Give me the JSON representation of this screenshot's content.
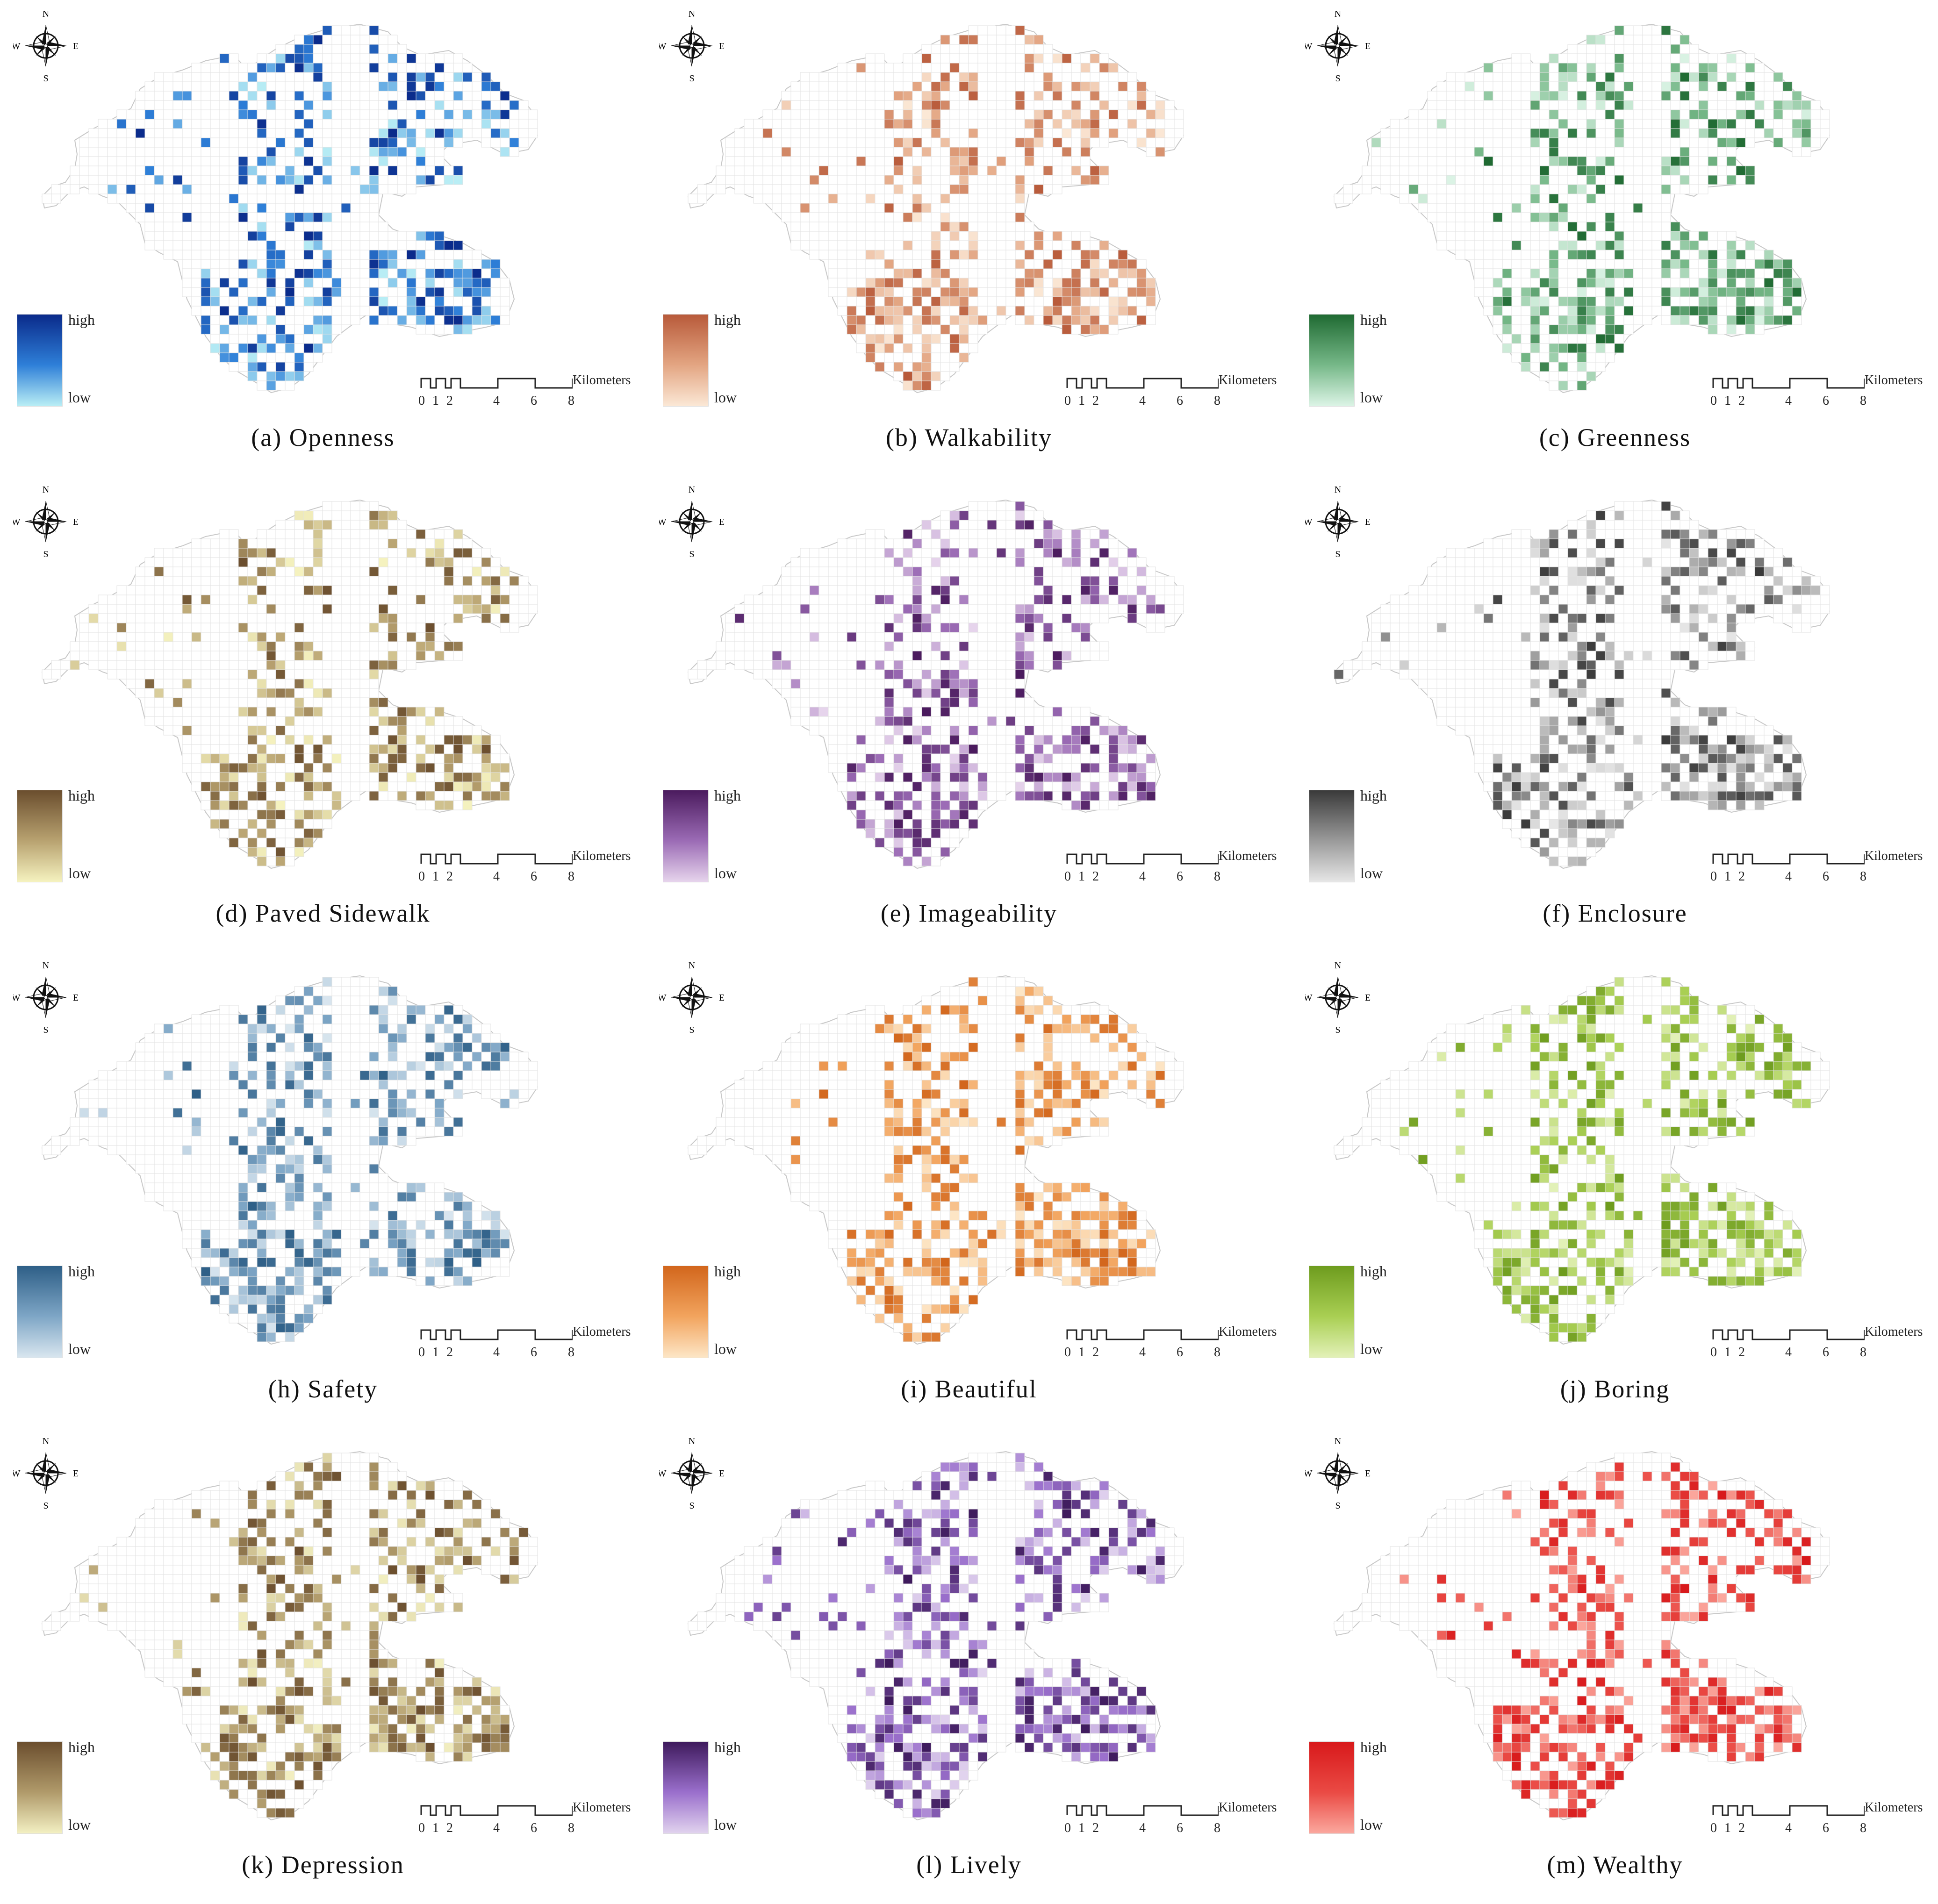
{
  "legend": {
    "high_label": "high",
    "low_label": "low"
  },
  "scalebar": {
    "unit": "Kilometers",
    "ticks": [
      "0",
      "1",
      "2",
      "4",
      "6",
      "8"
    ]
  },
  "compass": {
    "n": "N",
    "s": "S",
    "e": "E",
    "w": "W",
    "icon": "compass-rose-icon"
  },
  "panels": [
    {
      "id": "a",
      "caption": "(a) Openness",
      "color_high": "#0a2a8a",
      "color_mid": "#2e7fd8",
      "color_low": "#b9eef5",
      "density": 0.34
    },
    {
      "id": "b",
      "caption": "(b) Walkability",
      "color_high": "#b85a3a",
      "color_mid": "#e3a582",
      "color_low": "#fbe8d6",
      "density": 0.4
    },
    {
      "id": "c",
      "caption": "(c) Greenness",
      "color_high": "#1f6a32",
      "color_mid": "#76b888",
      "color_low": "#dcf4e6",
      "density": 0.4
    },
    {
      "id": "d",
      "caption": "(d) Paved Sidewalk",
      "color_high": "#6b4e2e",
      "color_mid": "#b8a270",
      "color_low": "#f5f2bf",
      "density": 0.36
    },
    {
      "id": "e",
      "caption": "(e) Imageability",
      "color_high": "#4b1b5e",
      "color_mid": "#9b6bb5",
      "color_low": "#e6d4ec",
      "density": 0.38
    },
    {
      "id": "f",
      "caption": "(f) Enclosure",
      "color_high": "#3a3a3a",
      "color_mid": "#9a9a9a",
      "color_low": "#e6e6e6",
      "density": 0.38
    },
    {
      "id": "h",
      "caption": "(h) Safety",
      "color_high": "#2e5f87",
      "color_mid": "#7ea6c6",
      "color_low": "#d9e6ef",
      "density": 0.4
    },
    {
      "id": "i",
      "caption": "(i) Beautiful",
      "color_high": "#d2661c",
      "color_mid": "#f2a45e",
      "color_low": "#fde6c6",
      "density": 0.42
    },
    {
      "id": "j",
      "caption": "(j) Boring",
      "color_high": "#6e9c1e",
      "color_mid": "#a9cf53",
      "color_low": "#e3f1b8",
      "density": 0.42
    },
    {
      "id": "k",
      "caption": "(k) Depression",
      "color_high": "#6b4e2e",
      "color_mid": "#b09a6a",
      "color_low": "#f3f0c2",
      "density": 0.38
    },
    {
      "id": "l",
      "caption": "(l) Lively",
      "color_high": "#3e1a5c",
      "color_mid": "#9a6fcc",
      "color_low": "#e1d3ee",
      "density": 0.4
    },
    {
      "id": "m",
      "caption": "(m) Wealthy",
      "color_high": "#d8191b",
      "color_mid": "#ea4a44",
      "color_low": "#fba89e",
      "density": 0.4
    }
  ]
}
